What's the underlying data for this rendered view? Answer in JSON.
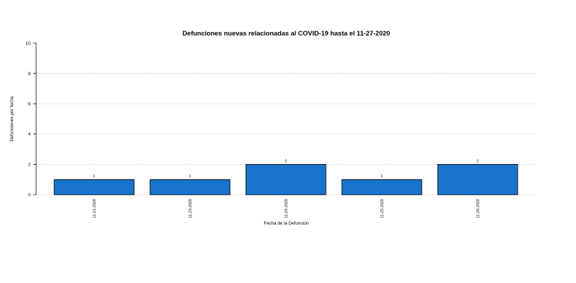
{
  "chart_data": {
    "type": "bar",
    "title": "Defunciones nuevas relacionadas al COVID-19 hasta el 11-27-2020",
    "xlabel": "Fecha de la Defunción",
    "ylabel": "Defunciones por fecha",
    "categories": [
      "11-21-2020",
      "11-23-2020",
      "11-24-2020",
      "11-25-2020",
      "11-26-2020"
    ],
    "values": [
      1,
      1,
      2,
      1,
      2
    ],
    "data_labels": [
      "1",
      "1",
      "2",
      "1",
      "2"
    ],
    "ylim": [
      0,
      10
    ],
    "yticks": [
      0,
      2,
      4,
      6,
      8,
      10
    ],
    "ytick_labels": [
      "0",
      "2",
      "4",
      "6",
      "8",
      "10"
    ],
    "grid": true,
    "bar_color": "#1874CD",
    "bar_edge_color": "#000000",
    "grid_color": "#BEBEBE"
  }
}
